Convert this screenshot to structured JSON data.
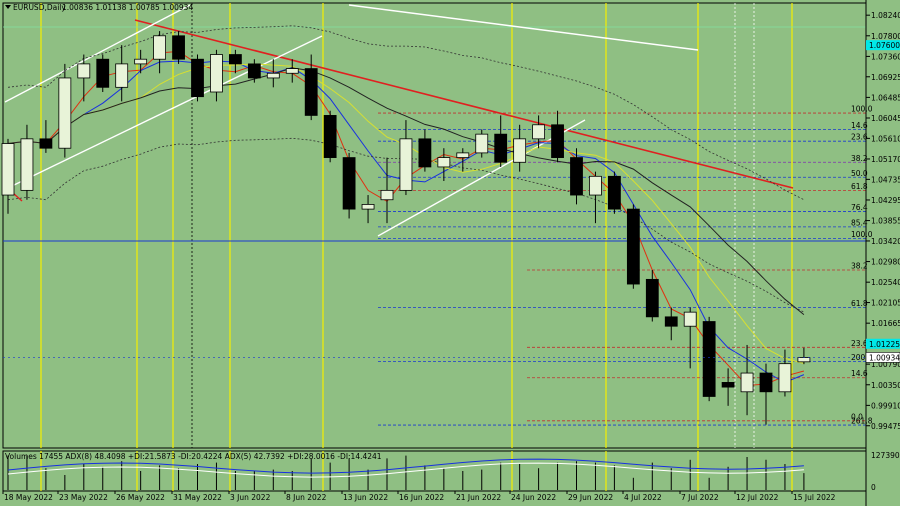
{
  "header": {
    "symbol_label": "EURUSD,Daily",
    "ohlc": "1.00836 1.01138 1.00785 1.00934"
  },
  "volume_label": "Volumes 17455  ADX(8) 48.4098 +DI:21.5873 -DI:20.4224  ADX(5) 42.7392 +DI:28.0016 -DI:14.4241",
  "colors": {
    "background": "#8fbf83",
    "bull": "#e8f3d8",
    "bear": "#000000",
    "trend_red": "#e02020",
    "channel_white": "#ffffff",
    "session_yellow": "#f5f000",
    "ma_red": "#e03010",
    "ma_blue": "#1830e0",
    "ma_yellow": "#d8e030",
    "ma_black": "#222222",
    "current_price_bg": "#00e8e8"
  },
  "chart_data": {
    "type": "candlestick",
    "ylim": [
      0.99,
      1.085
    ],
    "y_ticks": [
      "1.08240",
      "1.07800",
      "1.07360",
      "1.06925",
      "1.06485",
      "1.06045",
      "1.05610",
      "1.05170",
      "1.04735",
      "1.04295",
      "1.03855",
      "1.03420",
      "1.02980",
      "1.02540",
      "1.02105",
      "1.01665",
      "1.01225",
      "1.00790",
      "1.00350",
      "0.99910",
      "0.99475"
    ],
    "x_ticks": [
      "18 May 2022",
      "23 May 2022",
      "26 May 2022",
      "31 May 2022",
      "3 Jun 2022",
      "8 Jun 2022",
      "13 Jun 2022",
      "16 Jun 2022",
      "21 Jun 2022",
      "24 Jun 2022",
      "29 Jun 2022",
      "4 Jul 2022",
      "7 Jul 2022",
      "12 Jul 2022",
      "15 Jul 2022"
    ],
    "current_price": "1.00934",
    "current_price_value": 1.00934,
    "highlight_levels": [
      {
        "label": "1.07600",
        "value": 1.076
      },
      {
        "label": "1.01225",
        "value": 1.01225
      }
    ],
    "candles": [
      {
        "o": 1.044,
        "h": 1.056,
        "l": 1.04,
        "c": 1.055
      },
      {
        "o": 1.045,
        "h": 1.059,
        "l": 1.043,
        "c": 1.056
      },
      {
        "o": 1.056,
        "h": 1.06,
        "l": 1.053,
        "c": 1.054
      },
      {
        "o": 1.054,
        "h": 1.072,
        "l": 1.052,
        "c": 1.069
      },
      {
        "o": 1.069,
        "h": 1.074,
        "l": 1.064,
        "c": 1.072
      },
      {
        "o": 1.073,
        "h": 1.074,
        "l": 1.066,
        "c": 1.067
      },
      {
        "o": 1.067,
        "h": 1.076,
        "l": 1.064,
        "c": 1.072
      },
      {
        "o": 1.072,
        "h": 1.075,
        "l": 1.07,
        "c": 1.073
      },
      {
        "o": 1.073,
        "h": 1.079,
        "l": 1.07,
        "c": 1.078
      },
      {
        "o": 1.078,
        "h": 1.079,
        "l": 1.072,
        "c": 1.073
      },
      {
        "o": 1.073,
        "h": 1.074,
        "l": 1.064,
        "c": 1.065
      },
      {
        "o": 1.066,
        "h": 1.075,
        "l": 1.064,
        "c": 1.074
      },
      {
        "o": 1.074,
        "h": 1.075,
        "l": 1.07,
        "c": 1.072
      },
      {
        "o": 1.072,
        "h": 1.073,
        "l": 1.068,
        "c": 1.069
      },
      {
        "o": 1.069,
        "h": 1.073,
        "l": 1.067,
        "c": 1.07
      },
      {
        "o": 1.07,
        "h": 1.073,
        "l": 1.068,
        "c": 1.071
      },
      {
        "o": 1.071,
        "h": 1.074,
        "l": 1.06,
        "c": 1.061
      },
      {
        "o": 1.061,
        "h": 1.062,
        "l": 1.051,
        "c": 1.052
      },
      {
        "o": 1.052,
        "h": 1.053,
        "l": 1.039,
        "c": 1.041
      },
      {
        "o": 1.041,
        "h": 1.044,
        "l": 1.038,
        "c": 1.042
      },
      {
        "o": 1.043,
        "h": 1.052,
        "l": 1.038,
        "c": 1.045
      },
      {
        "o": 1.045,
        "h": 1.06,
        "l": 1.044,
        "c": 1.056
      },
      {
        "o": 1.056,
        "h": 1.058,
        "l": 1.049,
        "c": 1.05
      },
      {
        "o": 1.05,
        "h": 1.054,
        "l": 1.047,
        "c": 1.052
      },
      {
        "o": 1.052,
        "h": 1.054,
        "l": 1.049,
        "c": 1.053
      },
      {
        "o": 1.053,
        "h": 1.058,
        "l": 1.052,
        "c": 1.057
      },
      {
        "o": 1.057,
        "h": 1.061,
        "l": 1.05,
        "c": 1.051
      },
      {
        "o": 1.051,
        "h": 1.059,
        "l": 1.049,
        "c": 1.056
      },
      {
        "o": 1.056,
        "h": 1.061,
        "l": 1.054,
        "c": 1.059
      },
      {
        "o": 1.059,
        "h": 1.062,
        "l": 1.051,
        "c": 1.052
      },
      {
        "o": 1.052,
        "h": 1.054,
        "l": 1.042,
        "c": 1.044
      },
      {
        "o": 1.044,
        "h": 1.049,
        "l": 1.038,
        "c": 1.048
      },
      {
        "o": 1.048,
        "h": 1.049,
        "l": 1.04,
        "c": 1.041
      },
      {
        "o": 1.041,
        "h": 1.042,
        "l": 1.024,
        "c": 1.025
      },
      {
        "o": 1.026,
        "h": 1.028,
        "l": 1.017,
        "c": 1.018
      },
      {
        "o": 1.018,
        "h": 1.02,
        "l": 1.013,
        "c": 1.016
      },
      {
        "o": 1.016,
        "h": 1.02,
        "l": 1.007,
        "c": 1.019
      },
      {
        "o": 1.017,
        "h": 1.018,
        "l": 1.0,
        "c": 1.001
      },
      {
        "o": 1.004,
        "h": 1.007,
        "l": 0.999,
        "c": 1.003
      },
      {
        "o": 1.002,
        "h": 1.012,
        "l": 0.997,
        "c": 1.006
      },
      {
        "o": 1.006,
        "h": 1.008,
        "l": 0.995,
        "c": 1.002
      },
      {
        "o": 1.002,
        "h": 1.011,
        "l": 1.001,
        "c": 1.008
      },
      {
        "o": 1.0084,
        "h": 1.0114,
        "l": 1.0079,
        "c": 1.0093
      }
    ],
    "fib_levels": [
      {
        "label": "100.0",
        "value": 1.0615,
        "color": "#c03030"
      },
      {
        "label": "14.6",
        "value": 1.058,
        "color": "#1a3ad0"
      },
      {
        "label": "23.6",
        "value": 1.0555,
        "color": "#1a3ad0"
      },
      {
        "label": "38.2",
        "value": 1.051,
        "color": "#8030b0"
      },
      {
        "label": "50.0",
        "value": 1.0478,
        "color": "#1a3ad0"
      },
      {
        "label": "61.8",
        "value": 1.045,
        "color": "#c03030"
      },
      {
        "label": "76.4",
        "value": 1.0405,
        "color": "#1a3ad0"
      },
      {
        "label": "85.4",
        "value": 1.0372,
        "color": "#1a3ad0"
      },
      {
        "label": "100.0",
        "value": 1.0347,
        "color": "#1a3ad0"
      },
      {
        "label": "38.2",
        "value": 1.028,
        "color": "#c03030"
      },
      {
        "label": "61.8",
        "value": 1.02,
        "color": "#1a3ad0"
      },
      {
        "label": "23.6",
        "value": 1.0115,
        "color": "#c03030"
      },
      {
        "label": "200",
        "value": 1.0085,
        "color": "#1a3ad0"
      },
      {
        "label": "14.6",
        "value": 1.005,
        "color": "#c03030"
      },
      {
        "label": "0.0",
        "value": 0.9958,
        "color": "#c03030"
      },
      {
        "label": "261.8",
        "value": 0.9949,
        "color": "#1a3ad0"
      }
    ],
    "volume_axis": [
      "127390",
      "0"
    ]
  }
}
